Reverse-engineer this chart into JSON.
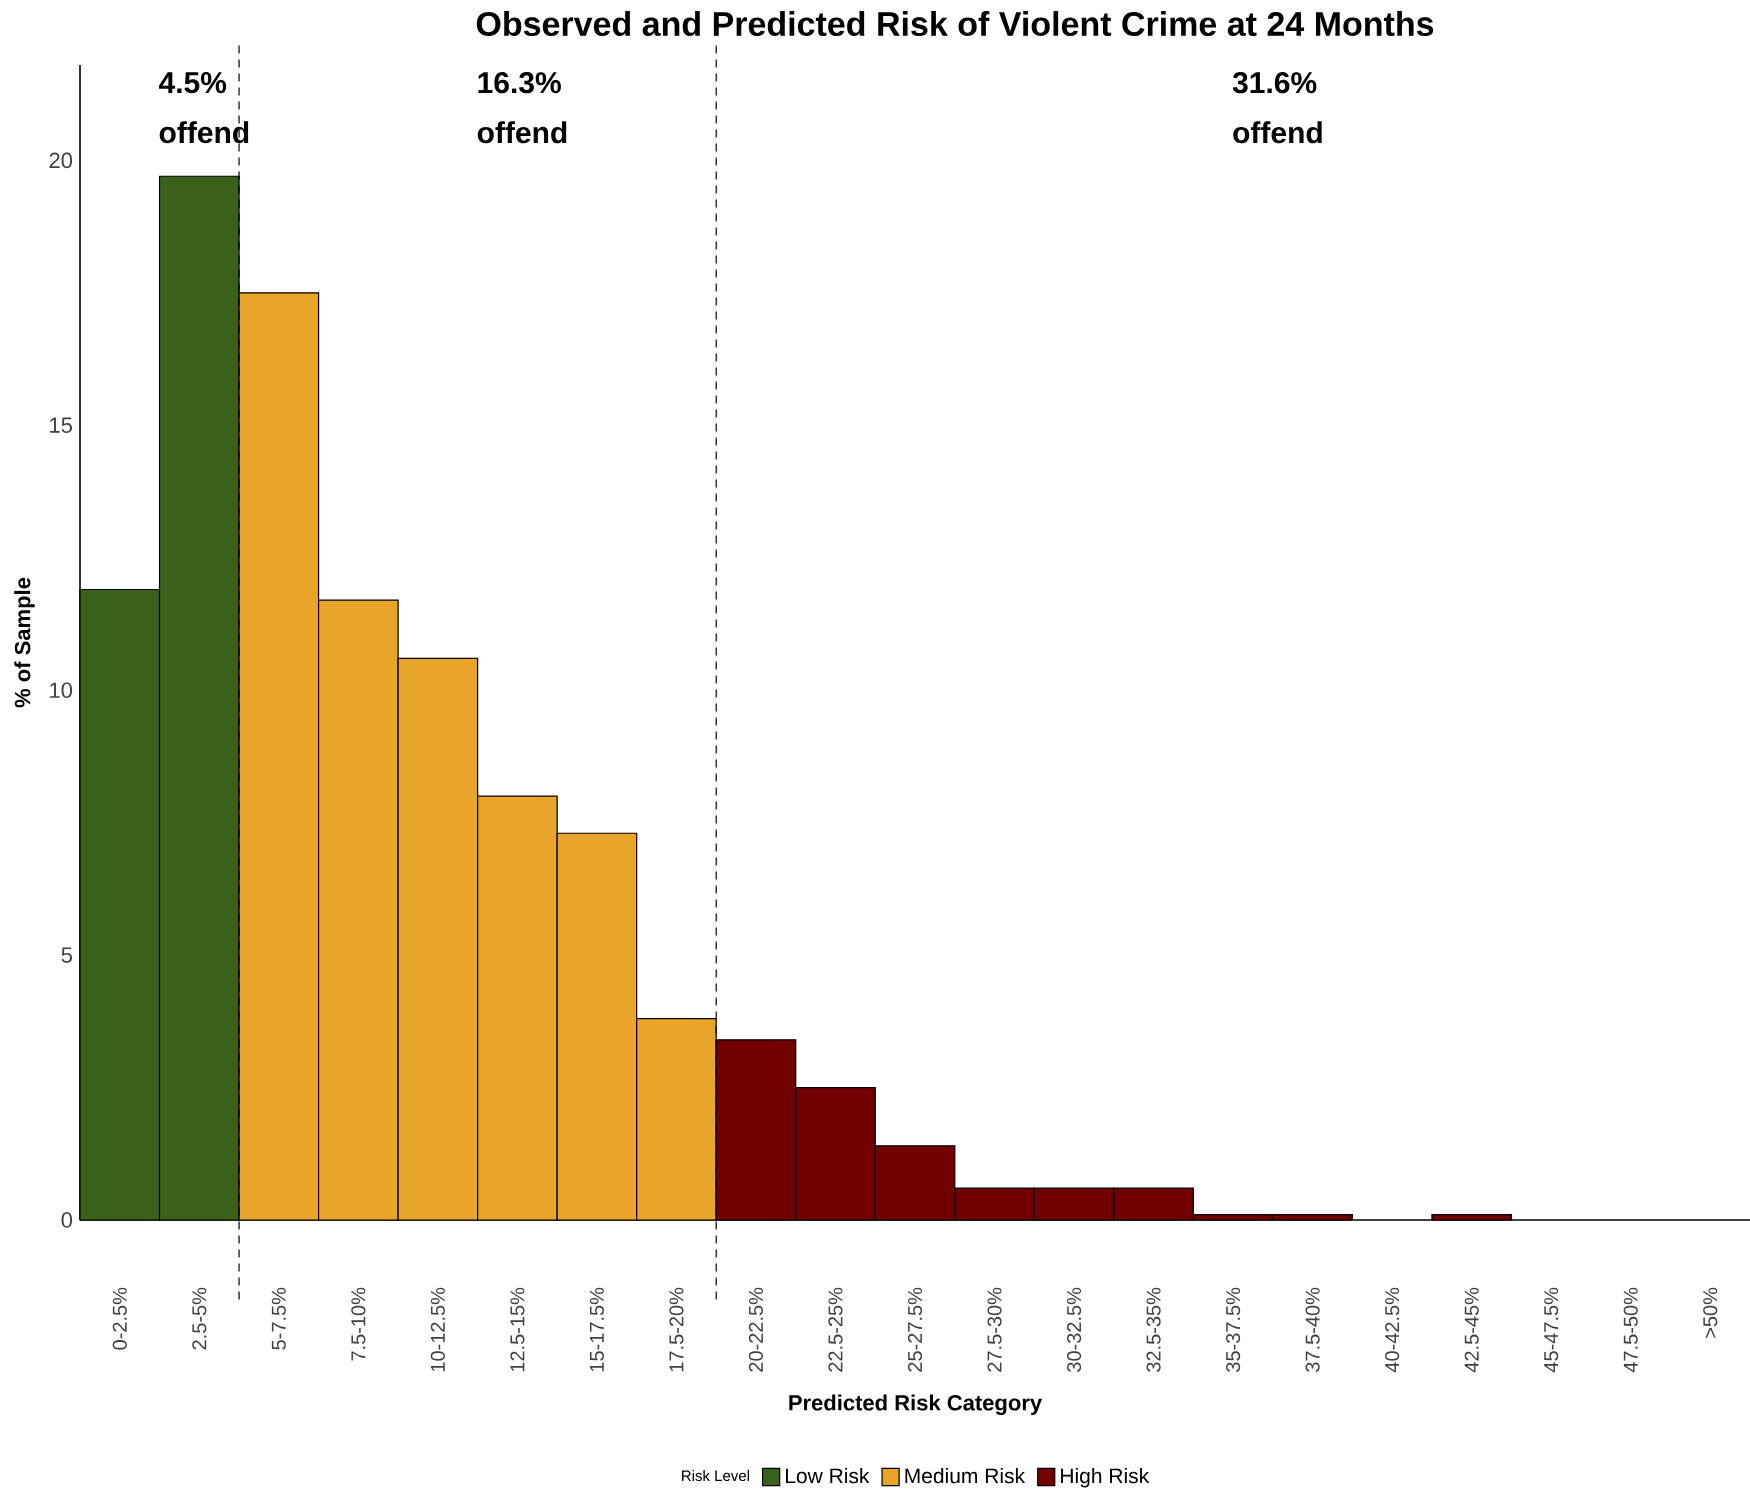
{
  "chart_data": {
    "type": "bar",
    "title": "Observed and Predicted Risk of Violent Crime at 24 Months",
    "xlabel": "Predicted Risk Category",
    "ylabel": "% of Sample",
    "legend_title": "Risk Level",
    "categories": [
      "0-2.5%",
      "2.5-5%",
      "5-7.5%",
      "7.5-10%",
      "10-12.5%",
      "12.5-15%",
      "15-17.5%",
      "17.5-20%",
      "20-22.5%",
      "22.5-25%",
      "25-27.5%",
      "27.5-30%",
      "30-32.5%",
      "32.5-35%",
      "35-37.5%",
      "37.5-40%",
      "40-42.5%",
      "42.5-45%",
      "45-47.5%",
      "47.5-50%",
      ">50%"
    ],
    "series": [
      {
        "name": "Low Risk",
        "color": "#3a6119",
        "values": [
          11.9,
          19.7,
          null,
          null,
          null,
          null,
          null,
          null,
          null,
          null,
          null,
          null,
          null,
          null,
          null,
          null,
          null,
          null,
          null,
          null,
          null
        ]
      },
      {
        "name": "Medium Risk",
        "color": "#e8a52a",
        "values": [
          null,
          null,
          17.5,
          11.7,
          10.6,
          8.0,
          7.3,
          3.8,
          null,
          null,
          null,
          null,
          null,
          null,
          null,
          null,
          null,
          null,
          null,
          null,
          null
        ]
      },
      {
        "name": "High Risk",
        "color": "#730000",
        "values": [
          null,
          null,
          null,
          null,
          null,
          null,
          null,
          null,
          3.4,
          2.5,
          1.4,
          0.6,
          0.6,
          0.6,
          0.1,
          0.1,
          null,
          0.1,
          null,
          null,
          null
        ]
      }
    ],
    "ylim": [
      0,
      21.8
    ],
    "yticks": [
      0,
      5,
      10,
      15,
      20
    ],
    "grid": false,
    "legend": "bottom",
    "annotations": [
      "4.5% offend",
      "16.3% offend",
      "31.6% offend"
    ]
  }
}
